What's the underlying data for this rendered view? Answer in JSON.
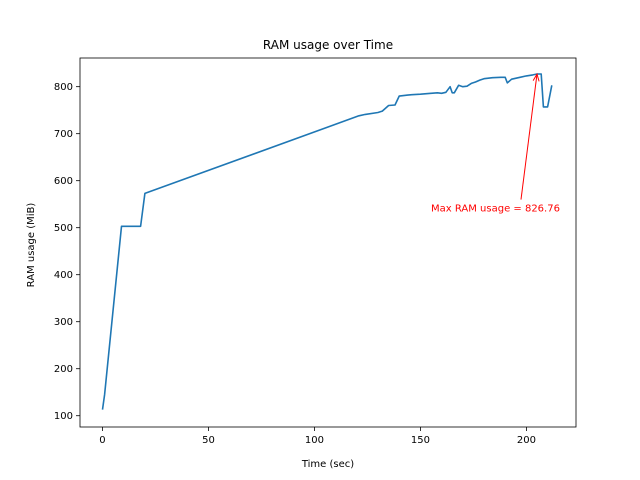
{
  "chart_data": {
    "type": "line",
    "title": "RAM usage over Time",
    "xlabel": "Time (sec)",
    "ylabel": "RAM usage (MiB)",
    "xlim": [
      -10.6,
      223.4
    ],
    "ylim": [
      76,
      861
    ],
    "xticks": [
      0,
      50,
      100,
      150,
      200
    ],
    "yticks": [
      100,
      200,
      300,
      400,
      500,
      600,
      700,
      800
    ],
    "grid": false,
    "series_color": "#1f77b4",
    "annotation_color": "#ff0000",
    "series": [
      {
        "x": [
          0,
          1,
          9,
          18,
          20,
          121,
          124,
          130,
          132,
          135,
          138,
          140,
          142,
          144,
          146,
          150,
          155,
          158,
          160,
          162,
          164,
          165,
          166,
          168,
          170,
          172,
          174,
          176,
          178,
          180,
          184,
          188,
          190,
          191,
          193,
          197,
          200,
          203,
          205,
          207,
          208,
          210,
          212
        ],
        "y": [
          113,
          145,
          503,
          503,
          573,
          738,
          741,
          745,
          748,
          760,
          761,
          780,
          781,
          782,
          783,
          784,
          786,
          787,
          786,
          788,
          800,
          787,
          787,
          803,
          800,
          801,
          807,
          810,
          814,
          817,
          819,
          820,
          820,
          808,
          816,
          820,
          823,
          825,
          827,
          827,
          757,
          757,
          803
        ]
      }
    ],
    "annotation": {
      "text": "Max RAM usage = 826.76",
      "xy": [
        205,
        826.76
      ],
      "xytext": [
        155,
        530
      ]
    }
  }
}
